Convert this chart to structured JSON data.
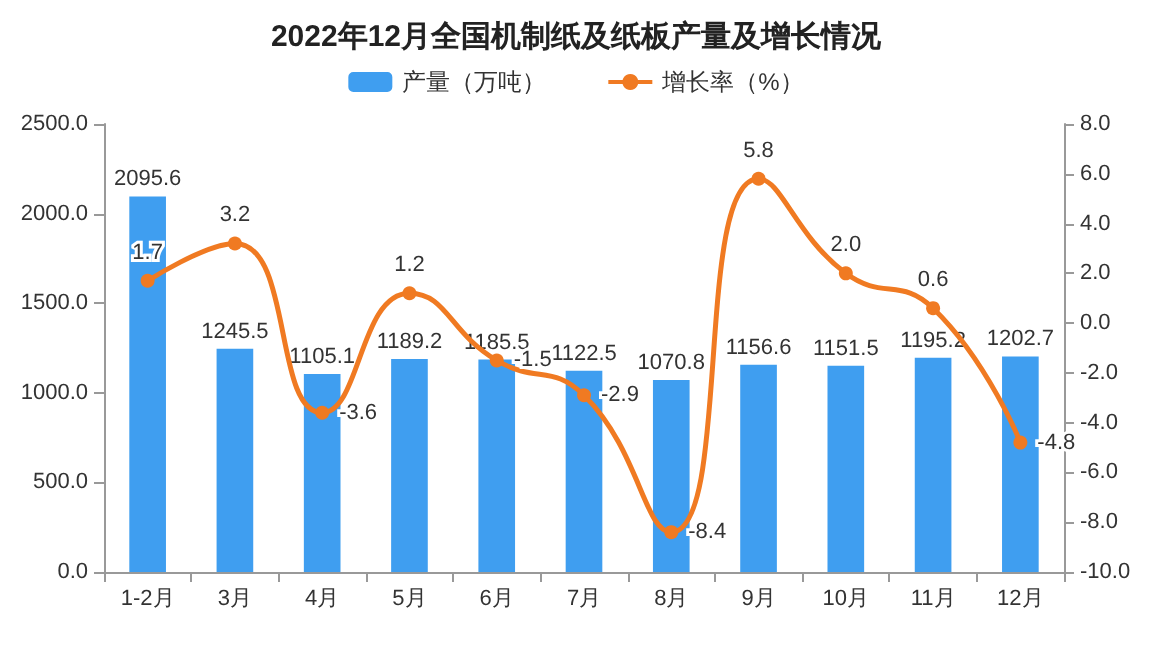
{
  "chart_data": {
    "type": "bar",
    "title": "2022年12月全国机制纸及纸板产量及增长情况",
    "categories": [
      "1-2月",
      "3月",
      "4月",
      "5月",
      "6月",
      "7月",
      "8月",
      "9月",
      "10月",
      "11月",
      "12月"
    ],
    "series": [
      {
        "name": "产量（万吨）",
        "color": "#3f9ef0",
        "values": [
          2095.6,
          1245.5,
          1105.1,
          1189.2,
          1185.5,
          1122.5,
          1070.8,
          1156.6,
          1151.5,
          1195.2,
          1202.7
        ],
        "value_labels": [
          "2095.6",
          "1245.5",
          "1105.1",
          "1189.2",
          "1185.5",
          "1122.5",
          "1070.8",
          "1156.6",
          "1151.5",
          "1195.2",
          "1202.7"
        ]
      },
      {
        "name": "增长率（%）",
        "type": "line",
        "axis": "y2",
        "color": "#f07a22",
        "values": [
          1.7,
          3.2,
          -3.6,
          1.2,
          -1.5,
          -2.9,
          -8.4,
          5.8,
          2.0,
          0.6,
          -4.8
        ],
        "value_labels": [
          "1.7",
          "3.2",
          "-3.6",
          "1.2",
          "-1.5",
          "-2.9",
          "-8.4",
          "5.8",
          "2.0",
          "0.6",
          "-4.8"
        ]
      }
    ],
    "ylim": [
      0,
      2500
    ],
    "yticks": [
      {
        "value": 0,
        "label": "0.0"
      },
      {
        "value": 500,
        "label": "500.0"
      },
      {
        "value": 1000,
        "label": "1000.0"
      },
      {
        "value": 1500,
        "label": "1500.0"
      },
      {
        "value": 2000,
        "label": "2000.0"
      },
      {
        "value": 2500,
        "label": "2500.0"
      }
    ],
    "y2lim": [
      -10,
      8
    ],
    "y2ticks": [
      {
        "value": -10,
        "label": "-10.0"
      },
      {
        "value": -8,
        "label": "-8.0"
      },
      {
        "value": -6,
        "label": "-6.0"
      },
      {
        "value": -4,
        "label": "-4.0"
      },
      {
        "value": -2,
        "label": "-2.0"
      },
      {
        "value": 0,
        "label": "0.0"
      },
      {
        "value": 2,
        "label": "2.0"
      },
      {
        "value": 4,
        "label": "4.0"
      },
      {
        "value": 6,
        "label": "6.0"
      },
      {
        "value": 8,
        "label": "8.0"
      }
    ],
    "legend": "top",
    "marker": "circle",
    "grid": false
  }
}
